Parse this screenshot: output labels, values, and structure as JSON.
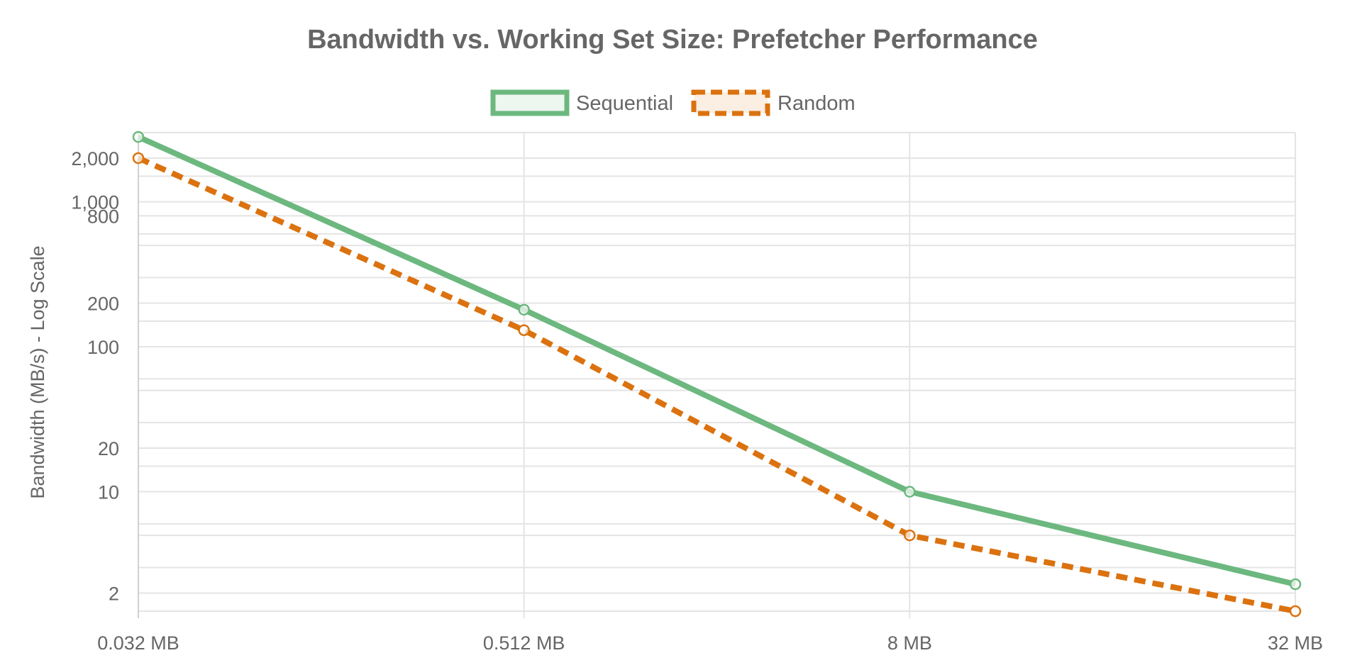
{
  "chart_data": {
    "type": "line",
    "title": "Bandwidth vs. Working Set Size: Prefetcher Performance",
    "xlabel": "",
    "ylabel": "Bandwidth (MB/s) - Log Scale",
    "yscale": "log",
    "ylim": [
      1.5,
      3000
    ],
    "categories": [
      "0.032 MB",
      "0.512 MB",
      "8 MB",
      "32 MB"
    ],
    "y_ticks": [
      2,
      10,
      20,
      100,
      200,
      800,
      1000,
      2000
    ],
    "y_tick_labels": [
      "2",
      "10",
      "20",
      "100",
      "200",
      "800",
      "1,000",
      "2,000"
    ],
    "y_grid_values": [
      1.5,
      2,
      3,
      5,
      6,
      10,
      15,
      20,
      30,
      50,
      60,
      100,
      150,
      200,
      300,
      500,
      600,
      800,
      1000,
      1500,
      2000,
      3000
    ],
    "grid": true,
    "legend_position": "top-center",
    "series": [
      {
        "name": "Sequential",
        "values": [
          2800,
          180,
          10,
          2.3
        ],
        "color": "#6cb87f",
        "dash": "solid"
      },
      {
        "name": "Random",
        "values": [
          2000,
          130,
          5,
          1.5
        ],
        "color": "#db720f",
        "dash": "dashed"
      }
    ]
  }
}
